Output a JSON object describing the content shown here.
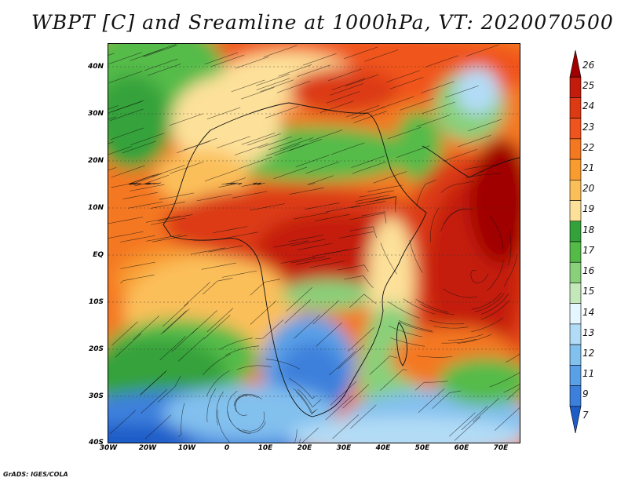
{
  "title": "WBPT [C] and Sreamline at 1000hPa, VT: 2020070500",
  "footer": "GrADS: IGES/COLA",
  "map": {
    "lat_labels": [
      "40N",
      "30N",
      "20N",
      "10N",
      "EQ",
      "10S",
      "20S",
      "30S",
      "40S"
    ],
    "lon_labels": [
      "30W",
      "20W",
      "10W",
      "0",
      "10E",
      "20E",
      "30E",
      "40E",
      "50E",
      "60E",
      "70E"
    ],
    "lat_range": [
      -40,
      45
    ],
    "lon_range": [
      -30,
      75
    ]
  },
  "colorbar": {
    "labels": [
      "26",
      "25",
      "24",
      "23",
      "22",
      "21",
      "20",
      "19",
      "18",
      "17",
      "16",
      "15",
      "14",
      "13",
      "12",
      "11",
      "9",
      "7"
    ],
    "colors": [
      "#a00000",
      "#c41c0c",
      "#dc3a12",
      "#f0541e",
      "#f47820",
      "#f89c30",
      "#fbbf5a",
      "#fde19a",
      "#34a23a",
      "#54bb48",
      "#88d07a",
      "#c4e8ba",
      "#e4f6ff",
      "#b2dcf6",
      "#82c0ee",
      "#5aa0e6",
      "#3c80dc",
      "#1e5cc8"
    ]
  }
}
